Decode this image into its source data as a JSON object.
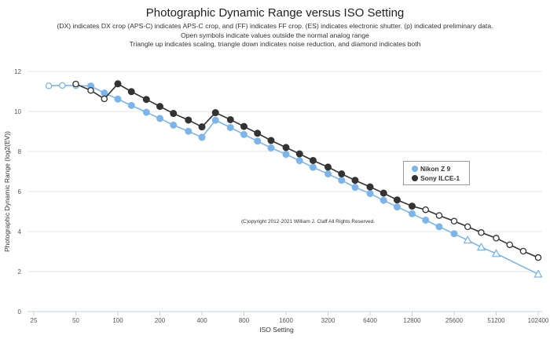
{
  "chart_data": {
    "type": "line",
    "title": "Photographic Dynamic Range versus ISO Setting",
    "subtitle": [
      "(DX) indicates DX crop (APS-C) indicates APS-C crop, and (FF) indicates FF crop. (ES) indicates electronic shutter. (p) indicated preliminary data.",
      "Open symbols indicate values outside the normal analog range",
      "Triangle up indicates scaling, triangle down indicates noise reduction, and diamond indicates both"
    ],
    "xlabel": "ISO Setting",
    "ylabel": "Photographic Dynamic Range (log2(EV))",
    "x_scale": "log2",
    "x_ticks": [
      25,
      50,
      100,
      200,
      400,
      800,
      1600,
      3200,
      6400,
      12800,
      25600,
      51200,
      102400
    ],
    "x_tick_labels": [
      "25",
      "50",
      "100",
      "200",
      "400",
      "800",
      "1600",
      "3200",
      "6400",
      "12800",
      "25600",
      "51200",
      "102400"
    ],
    "ylim": [
      0,
      12
    ],
    "y_ticks": [
      0,
      2,
      4,
      6,
      8,
      10,
      12
    ],
    "grid": "horizontal",
    "legend_position": "right",
    "annotation": "(C)opyright 2012-2021 William J. Claff All Rights Reserved.",
    "series": [
      {
        "name": "Nikon Z 9",
        "color": "#7cb5ec",
        "x": [
          32,
          40,
          50,
          64,
          80,
          100,
          125,
          160,
          200,
          250,
          320,
          400,
          500,
          640,
          800,
          1000,
          1250,
          1600,
          2000,
          2500,
          3200,
          4000,
          5000,
          6400,
          8000,
          10000,
          12800,
          16000,
          20000,
          25600,
          32000,
          40000,
          51200,
          102400
        ],
        "y": [
          11.28,
          11.3,
          11.29,
          11.27,
          10.92,
          10.62,
          10.3,
          9.96,
          9.65,
          9.32,
          9.01,
          8.71,
          9.56,
          9.2,
          8.85,
          8.52,
          8.18,
          7.86,
          7.54,
          7.21,
          6.88,
          6.56,
          6.21,
          5.9,
          5.56,
          5.23,
          4.89,
          4.57,
          4.24,
          3.89,
          3.57,
          3.22,
          2.9,
          1.87
        ],
        "marker": [
          "open-circle",
          "open-circle",
          "open-circle",
          "circle",
          "circle",
          "circle",
          "circle",
          "circle",
          "circle",
          "circle",
          "circle",
          "circle",
          "circle",
          "circle",
          "circle",
          "circle",
          "circle",
          "circle",
          "circle",
          "circle",
          "circle",
          "circle",
          "circle",
          "circle",
          "circle",
          "circle",
          "circle",
          "circle",
          "circle",
          "circle",
          "open-triangle-up",
          "open-triangle-up",
          "open-triangle-up",
          "open-triangle-up"
        ]
      },
      {
        "name": "Sony ILCE-1",
        "color": "#333333",
        "x": [
          50,
          64,
          80,
          100,
          125,
          160,
          200,
          250,
          320,
          400,
          500,
          640,
          800,
          1000,
          1250,
          1600,
          2000,
          2500,
          3200,
          4000,
          5000,
          6400,
          8000,
          10000,
          12800,
          16000,
          20000,
          25600,
          32000,
          40000,
          51200,
          64000,
          80000,
          102400
        ],
        "y": [
          11.37,
          11.05,
          10.63,
          11.38,
          10.99,
          10.6,
          10.25,
          9.9,
          9.57,
          9.23,
          9.94,
          9.59,
          9.25,
          8.91,
          8.55,
          8.2,
          7.88,
          7.55,
          7.22,
          6.88,
          6.56,
          6.23,
          5.92,
          5.58,
          5.27,
          5.09,
          4.8,
          4.52,
          4.24,
          3.95,
          3.67,
          3.34,
          3.02,
          2.7
        ],
        "marker": [
          "open-circle",
          "open-circle",
          "open-circle",
          "circle",
          "circle",
          "circle",
          "circle",
          "circle",
          "circle",
          "circle",
          "circle",
          "circle",
          "circle",
          "circle",
          "circle",
          "circle",
          "circle",
          "circle",
          "circle",
          "circle",
          "circle",
          "circle",
          "circle",
          "circle",
          "circle",
          "open-circle",
          "open-circle",
          "open-circle",
          "open-circle",
          "open-circle",
          "open-circle",
          "open-circle",
          "open-circle",
          "open-circle"
        ]
      }
    ]
  }
}
